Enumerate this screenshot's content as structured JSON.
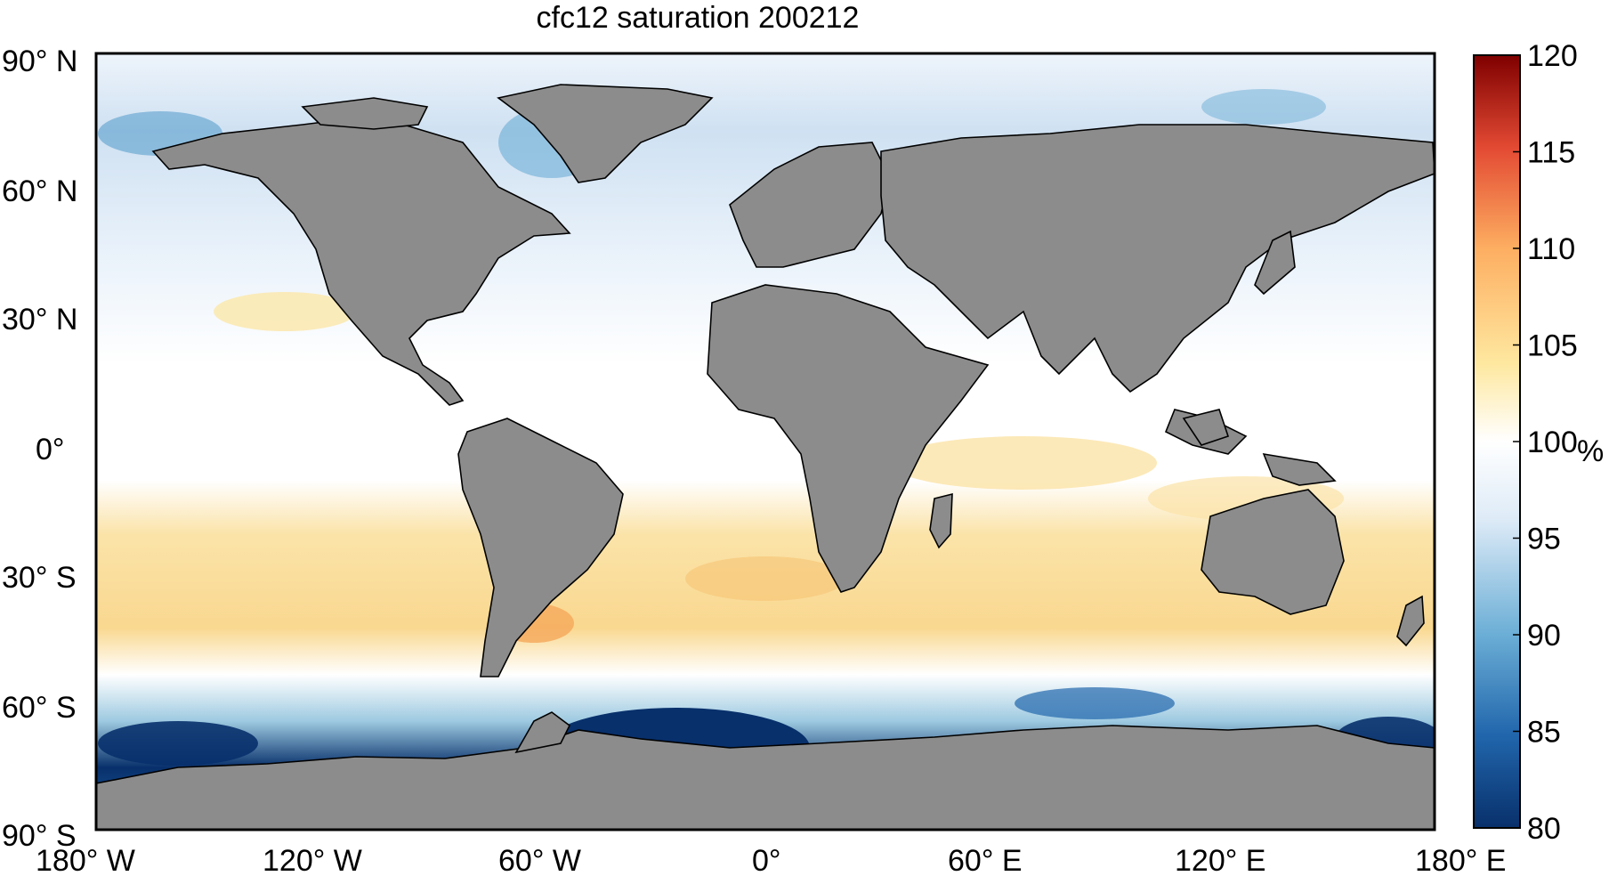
{
  "title": "cfc12 saturation 200212",
  "lat_labels": [
    "90° N",
    "60° N",
    "30° N",
    "0°",
    "30° S",
    "60° S",
    "90° S"
  ],
  "lon_labels": [
    "180° W",
    "120° W",
    "60° W",
    "0°",
    "60° E",
    "120° E",
    "180° E"
  ],
  "colorbar": {
    "unit": "%",
    "min": 80,
    "max": 120,
    "ticks": [
      "80",
      "85",
      "90",
      "95",
      "100",
      "105",
      "110",
      "115",
      "120"
    ],
    "colors": {
      "deep_low": "#08306b",
      "low": "#2166ac",
      "mid_low": "#6baed6",
      "near_low": "#deebf7",
      "neutral": "#ffffff",
      "near_high": "#fee8a0",
      "mid_high": "#fdae61",
      "high": "#e34a33",
      "deep_high": "#7f0000"
    }
  },
  "land_color": "#8c8c8c"
}
